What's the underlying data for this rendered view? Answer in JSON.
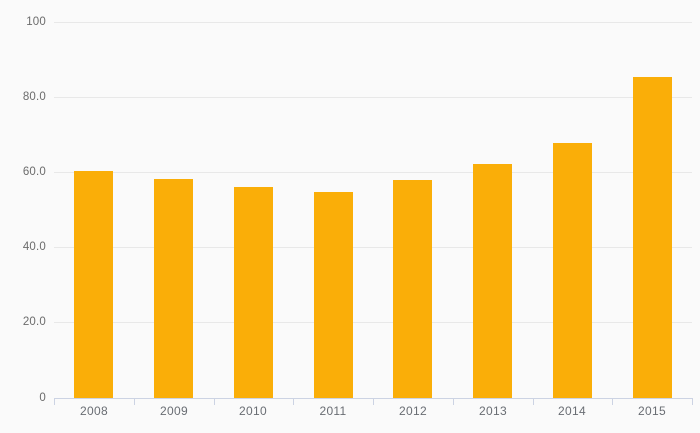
{
  "chart_data": {
    "type": "bar",
    "title": "",
    "xlabel": "",
    "ylabel": "",
    "categories": [
      "2008",
      "2009",
      "2010",
      "2011",
      "2012",
      "2013",
      "2014",
      "2015"
    ],
    "values": [
      60.5,
      58.3,
      56.2,
      54.9,
      58.0,
      62.3,
      68.0,
      85.5
    ],
    "y_ticks": [
      {
        "value": 0,
        "label": "0"
      },
      {
        "value": 20,
        "label": "20.0"
      },
      {
        "value": 40,
        "label": "40.0"
      },
      {
        "value": 60,
        "label": "60.0"
      },
      {
        "value": 80,
        "label": "80.0"
      },
      {
        "value": 100,
        "label": "100"
      }
    ],
    "ylim": [
      0,
      100
    ],
    "grid": true,
    "legend": "none",
    "colors": {
      "bar": "#faae08",
      "gridline": "#e8e8e8",
      "axis": "#ccd3e3",
      "y_label": "#6b6b6b",
      "x_label": "#696d73",
      "background": "#fafafa"
    }
  }
}
